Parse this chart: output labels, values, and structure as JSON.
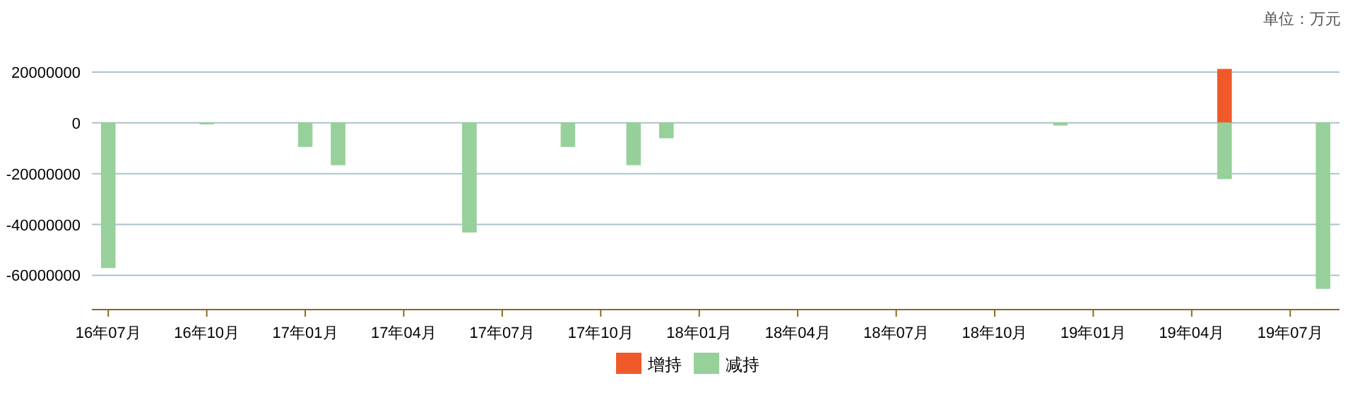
{
  "chart_data": {
    "type": "bar",
    "stacked": true,
    "annotations": [
      "单位：万元"
    ],
    "categories": [
      "16年07月",
      null,
      null,
      "16年10月",
      null,
      null,
      "17年01月",
      null,
      null,
      "17年04月",
      null,
      null,
      "17年07月",
      null,
      null,
      "17年10月",
      null,
      null,
      "18年01月",
      null,
      null,
      "18年04月",
      null,
      null,
      "18年07月",
      null,
      null,
      "18年10月",
      null,
      null,
      "19年01月",
      null,
      null,
      "19年04月",
      null,
      null,
      "19年07月",
      null
    ],
    "series": [
      {
        "name": "增持",
        "color": "#f05a2a",
        "values": [
          null,
          null,
          null,
          null,
          null,
          null,
          null,
          null,
          null,
          null,
          null,
          null,
          null,
          null,
          null,
          null,
          null,
          null,
          null,
          null,
          null,
          null,
          null,
          null,
          null,
          null,
          null,
          null,
          null,
          null,
          null,
          null,
          null,
          null,
          21100000,
          null,
          null,
          null
        ]
      },
      {
        "name": "减持",
        "color": "#97d09a",
        "values": [
          -57000000,
          null,
          null,
          -300000,
          null,
          null,
          -9300000,
          -16500000,
          null,
          null,
          null,
          -43000000,
          null,
          null,
          -9300000,
          null,
          -16500000,
          -5900000,
          null,
          null,
          null,
          null,
          null,
          null,
          null,
          null,
          null,
          null,
          null,
          -900000,
          null,
          null,
          null,
          null,
          -22000000,
          null,
          null,
          -65200000
        ]
      }
    ],
    "ylim": [
      -73500000,
      21100000
    ],
    "yticks": [
      20000000,
      0,
      -20000000,
      -40000000,
      -60000000
    ],
    "grid": "y",
    "legend": "bottom"
  }
}
